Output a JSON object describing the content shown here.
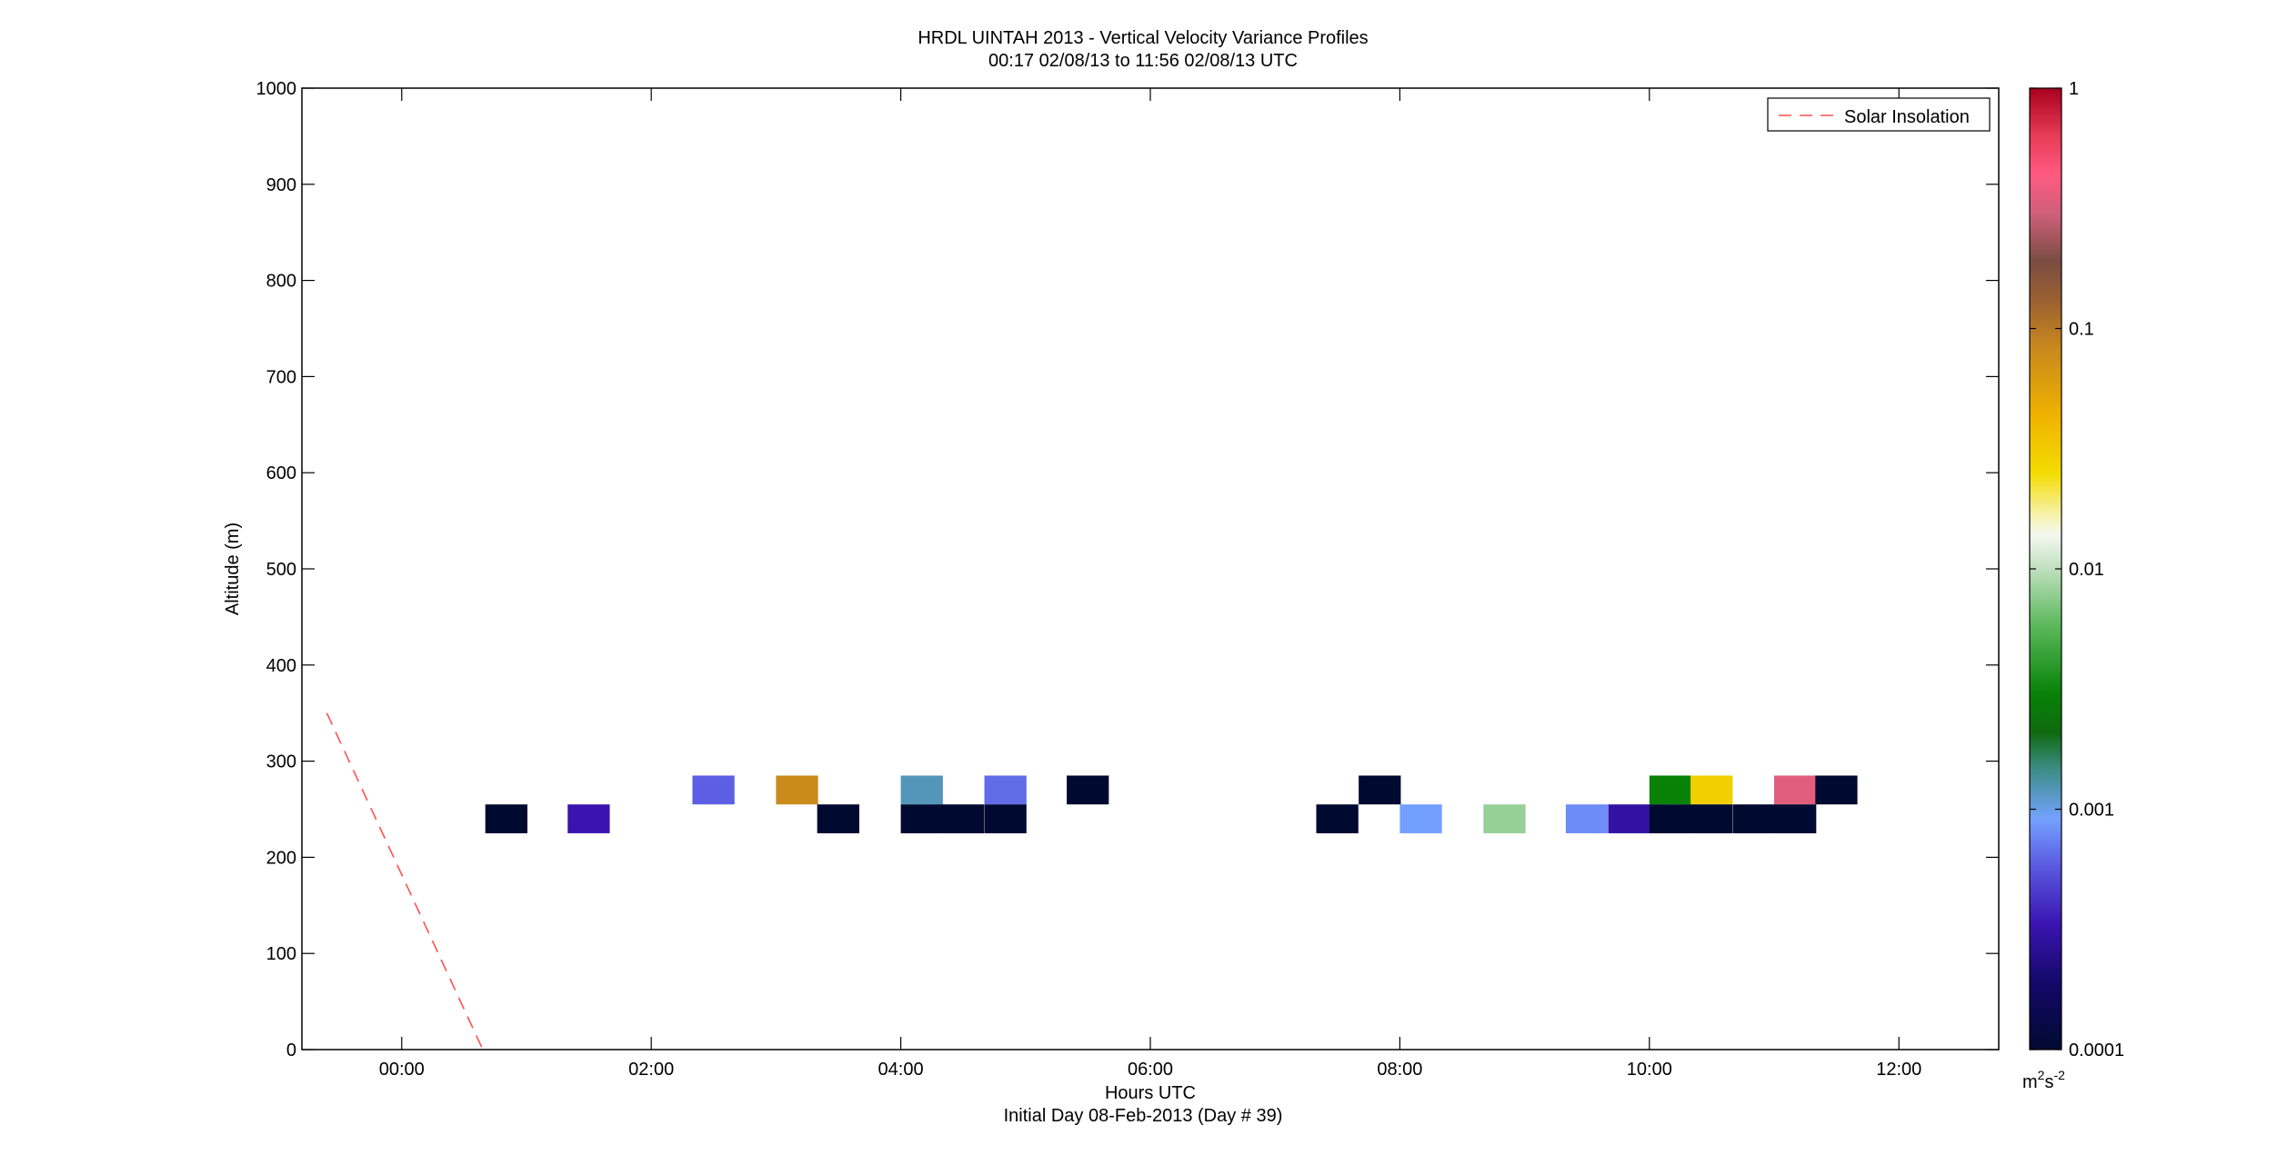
{
  "chart_data": {
    "type": "heatmap",
    "title": "HRDL UINTAH 2013 - Vertical Velocity Variance Profiles",
    "subtitle": "00:17 02/08/13 to 11:56 02/08/13  UTC",
    "xlabel": "Hours UTC",
    "xlabel2": "Initial Day 08-Feb-2013 (Day # 39)",
    "ylabel": "Altitude (m)",
    "xlim": [
      -0.8,
      12.8
    ],
    "ylim": [
      0,
      1000
    ],
    "x_ticks": [
      0,
      2,
      4,
      6,
      8,
      10,
      12
    ],
    "x_tick_labels": [
      "00:00",
      "02:00",
      "04:00",
      "06:00",
      "08:00",
      "10:00",
      "12:00"
    ],
    "y_ticks": [
      0,
      100,
      200,
      300,
      400,
      500,
      600,
      700,
      800,
      900,
      1000
    ],
    "y_tick_labels": [
      "0",
      "100",
      "200",
      "300",
      "400",
      "500",
      "600",
      "700",
      "800",
      "900",
      "1000"
    ],
    "grid": false,
    "legend": {
      "position": "top-right",
      "entries": [
        "Solar Insolation"
      ]
    },
    "colorbar": {
      "scale": "log",
      "range": [
        0.0001,
        1
      ],
      "tick_values": [
        0.0001,
        0.001,
        0.01,
        0.1,
        1
      ],
      "tick_labels": [
        "0.0001",
        "0.001",
        "0.01",
        "0.1",
        "1"
      ],
      "unit_base": "m",
      "unit_sup1": "2",
      "unit_mid": "s",
      "unit_sup2": "-2"
    },
    "cell_hours": 0.333,
    "cell_altitude": 30,
    "cells": [
      {
        "t": 0.67,
        "alt": 240,
        "value": 0.0001
      },
      {
        "t": 1.33,
        "alt": 240,
        "value": 0.00033
      },
      {
        "t": 2.33,
        "alt": 270,
        "value": 0.0006
      },
      {
        "t": 3.0,
        "alt": 270,
        "value": 0.08
      },
      {
        "t": 3.33,
        "alt": 240,
        "value": 0.0001
      },
      {
        "t": 4.0,
        "alt": 270,
        "value": 0.0012
      },
      {
        "t": 4.0,
        "alt": 240,
        "value": 0.0001
      },
      {
        "t": 4.33,
        "alt": 240,
        "value": 0.0001
      },
      {
        "t": 4.67,
        "alt": 270,
        "value": 0.00065
      },
      {
        "t": 4.67,
        "alt": 240,
        "value": 0.0001
      },
      {
        "t": 5.33,
        "alt": 270,
        "value": 0.0001
      },
      {
        "t": 7.33,
        "alt": 240,
        "value": 0.0001
      },
      {
        "t": 7.67,
        "alt": 270,
        "value": 0.0001
      },
      {
        "t": 8.0,
        "alt": 240,
        "value": 0.0009
      },
      {
        "t": 8.67,
        "alt": 240,
        "value": 0.008
      },
      {
        "t": 9.33,
        "alt": 240,
        "value": 0.0008
      },
      {
        "t": 9.67,
        "alt": 240,
        "value": 0.0003
      },
      {
        "t": 10.0,
        "alt": 270,
        "value": 0.003
      },
      {
        "t": 10.0,
        "alt": 240,
        "value": 0.0001
      },
      {
        "t": 10.33,
        "alt": 270,
        "value": 0.03
      },
      {
        "t": 10.33,
        "alt": 240,
        "value": 0.0001
      },
      {
        "t": 10.67,
        "alt": 240,
        "value": 0.0001
      },
      {
        "t": 11.0,
        "alt": 270,
        "value": 0.35
      },
      {
        "t": 11.0,
        "alt": 240,
        "value": 0.0001
      },
      {
        "t": 11.33,
        "alt": 270,
        "value": 0.0001
      }
    ],
    "series": [
      {
        "name": "Solar Insolation",
        "color": "#ff5050",
        "style": "dashed",
        "points": [
          [
            -0.6,
            350
          ],
          [
            0.65,
            0
          ]
        ]
      }
    ]
  }
}
